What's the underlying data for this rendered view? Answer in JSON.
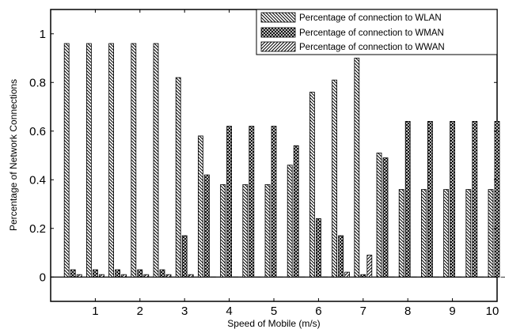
{
  "chart_data": {
    "type": "bar",
    "title": "",
    "xlabel": "Speed of Mobile (m/s)",
    "ylabel": "Percentage of Network Connections",
    "xlim": [
      0,
      10
    ],
    "ylim": [
      -0.1,
      1.1
    ],
    "xticks": [
      "1",
      "2",
      "3",
      "4",
      "5",
      "6",
      "7",
      "8",
      "9",
      "10"
    ],
    "yticks": [
      "0",
      "0.2",
      "0.4",
      "0.6",
      "0.8",
      "1"
    ],
    "grid": false,
    "legend_position": "top-right",
    "x": [
      0.5,
      1.0,
      1.5,
      2.0,
      2.5,
      3.0,
      3.5,
      4.0,
      4.5,
      5.0,
      5.5,
      6.0,
      6.5,
      7.0,
      7.5,
      8.0,
      8.5,
      9.0,
      9.5,
      10.0
    ],
    "series": [
      {
        "name": "Percentage of connection to WLAN",
        "pattern": "backslash",
        "values": [
          0.96,
          0.96,
          0.96,
          0.96,
          0.96,
          0.82,
          0.58,
          0.38,
          0.38,
          0.38,
          0.46,
          0.76,
          0.81,
          0.9,
          0.51,
          0.36,
          0.36,
          0.36,
          0.36,
          0.36
        ]
      },
      {
        "name": "Percentage of connection to WMAN",
        "pattern": "crosshatch",
        "values": [
          0.03,
          0.03,
          0.03,
          0.03,
          0.03,
          0.17,
          0.42,
          0.62,
          0.62,
          0.62,
          0.54,
          0.24,
          0.17,
          0.01,
          0.49,
          0.64,
          0.64,
          0.64,
          0.64,
          0.64
        ]
      },
      {
        "name": "Percentage of connection to WWAN",
        "pattern": "slash",
        "values": [
          0.01,
          0.01,
          0.01,
          0.01,
          0.01,
          0.01,
          0.0,
          0.0,
          0.0,
          0.0,
          0.0,
          0.0,
          0.02,
          0.09,
          0.0,
          0.0,
          0.0,
          0.0,
          0.0,
          0.0
        ]
      }
    ]
  }
}
